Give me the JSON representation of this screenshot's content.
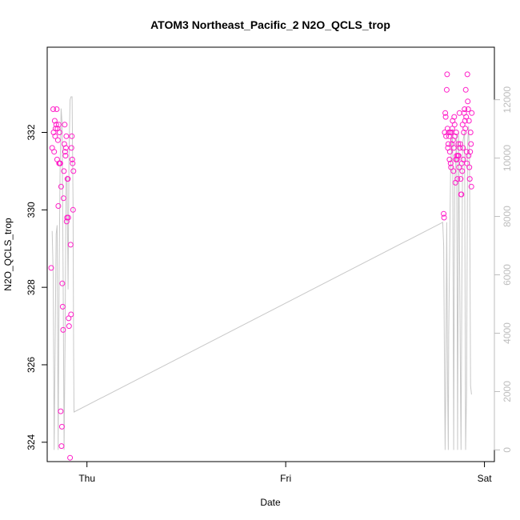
{
  "chart_data": {
    "type": "scatter",
    "title": "ATOM3 Northeast_Pacific_2 N2O_QCLS_trop",
    "xlabel": "Date",
    "ylabel": "N2O_QCLS_trop",
    "x_ticks": [
      "Thu",
      "Fri",
      "Sat"
    ],
    "x_range_days": [
      -0.2,
      2.05
    ],
    "ylim": [
      323.5,
      334.2
    ],
    "y_ticks": [
      324,
      326,
      328,
      330,
      332
    ],
    "y2lim": [
      -400,
      13800
    ],
    "y2_ticks": [
      0,
      2000,
      4000,
      6000,
      8000,
      10000,
      12000
    ],
    "point_color": "#ff1fc8",
    "line_color": "#c8c8c8",
    "series": [
      {
        "kind": "points",
        "points": [
          [
            -0.18,
            328.5
          ],
          [
            -0.175,
            331.6
          ],
          [
            -0.17,
            332.6
          ],
          [
            -0.168,
            332.0
          ],
          [
            -0.165,
            331.5
          ],
          [
            -0.162,
            332.3
          ],
          [
            -0.16,
            331.9
          ],
          [
            -0.158,
            332.1
          ],
          [
            -0.155,
            332.2
          ],
          [
            -0.152,
            332.6
          ],
          [
            -0.15,
            331.3
          ],
          [
            -0.148,
            332.1
          ],
          [
            -0.146,
            331.8
          ],
          [
            -0.144,
            330.1
          ],
          [
            -0.142,
            332.2
          ],
          [
            -0.14,
            331.2
          ],
          [
            -0.138,
            332.0
          ],
          [
            -0.136,
            331.2
          ],
          [
            -0.134,
            331.2
          ],
          [
            -0.132,
            324.8
          ],
          [
            -0.13,
            330.6
          ],
          [
            -0.128,
            323.9
          ],
          [
            -0.126,
            324.4
          ],
          [
            -0.124,
            328.1
          ],
          [
            -0.122,
            327.5
          ],
          [
            -0.12,
            326.9
          ],
          [
            -0.118,
            330.3
          ],
          [
            -0.116,
            331.0
          ],
          [
            -0.114,
            331.7
          ],
          [
            -0.112,
            332.2
          ],
          [
            -0.11,
            331.5
          ],
          [
            -0.108,
            331.4
          ],
          [
            -0.106,
            331.6
          ],
          [
            -0.104,
            331.9
          ],
          [
            -0.102,
            329.7
          ],
          [
            -0.1,
            329.8
          ],
          [
            -0.098,
            330.8
          ],
          [
            -0.096,
            330.8
          ],
          [
            -0.094,
            329.8
          ],
          [
            -0.092,
            327.2
          ],
          [
            -0.09,
            327.0
          ],
          [
            -0.085,
            323.6
          ],
          [
            -0.082,
            329.1
          ],
          [
            -0.08,
            327.3
          ],
          [
            -0.078,
            331.6
          ],
          [
            -0.076,
            331.9
          ],
          [
            -0.074,
            331.3
          ],
          [
            -0.072,
            331.2
          ],
          [
            -0.07,
            330.0
          ],
          [
            -0.068,
            331.0
          ],
          [
            1.795,
            329.9
          ],
          [
            1.797,
            329.8
          ],
          [
            1.8,
            332.0
          ],
          [
            1.803,
            332.5
          ],
          [
            1.805,
            332.4
          ],
          [
            1.807,
            331.9
          ],
          [
            1.81,
            333.1
          ],
          [
            1.812,
            333.5
          ],
          [
            1.814,
            332.1
          ],
          [
            1.816,
            331.6
          ],
          [
            1.818,
            331.7
          ],
          [
            1.82,
            332.0
          ],
          [
            1.822,
            331.9
          ],
          [
            1.824,
            331.3
          ],
          [
            1.826,
            331.5
          ],
          [
            1.828,
            332.0
          ],
          [
            1.83,
            331.2
          ],
          [
            1.832,
            331.1
          ],
          [
            1.834,
            332.0
          ],
          [
            1.836,
            331.7
          ],
          [
            1.838,
            332.1
          ],
          [
            1.84,
            332.3
          ],
          [
            1.842,
            331.8
          ],
          [
            1.844,
            331.0
          ],
          [
            1.846,
            331.6
          ],
          [
            1.848,
            332.4
          ],
          [
            1.85,
            332.2
          ],
          [
            1.852,
            331.9
          ],
          [
            1.854,
            330.7
          ],
          [
            1.856,
            331.3
          ],
          [
            1.858,
            332.0
          ],
          [
            1.86,
            331.4
          ],
          [
            1.862,
            331.3
          ],
          [
            1.864,
            330.8
          ],
          [
            1.866,
            331.4
          ],
          [
            1.868,
            331.7
          ],
          [
            1.87,
            331.4
          ],
          [
            1.872,
            331.1
          ],
          [
            1.874,
            332.5
          ],
          [
            1.876,
            331.6
          ],
          [
            1.878,
            331.7
          ],
          [
            1.88,
            330.8
          ],
          [
            1.882,
            330.4
          ],
          [
            1.884,
            330.4
          ],
          [
            1.886,
            331.2
          ],
          [
            1.888,
            331.0
          ],
          [
            1.89,
            332.2
          ],
          [
            1.892,
            331.6
          ],
          [
            1.894,
            331.3
          ],
          [
            1.896,
            332.0
          ],
          [
            1.898,
            332.5
          ],
          [
            1.9,
            332.6
          ],
          [
            1.902,
            332.3
          ],
          [
            1.904,
            332.1
          ],
          [
            1.906,
            333.1
          ],
          [
            1.908,
            332.4
          ],
          [
            1.91,
            331.5
          ],
          [
            1.912,
            331.2
          ],
          [
            1.914,
            333.5
          ],
          [
            1.916,
            332.8
          ],
          [
            1.918,
            332.6
          ],
          [
            1.92,
            331.4
          ],
          [
            1.922,
            332.3
          ],
          [
            1.924,
            331.1
          ],
          [
            1.926,
            330.8
          ],
          [
            1.928,
            331.5
          ],
          [
            1.93,
            332.0
          ],
          [
            1.932,
            331.7
          ],
          [
            1.934,
            330.6
          ],
          [
            1.936,
            332.5
          ]
        ]
      },
      {
        "kind": "line",
        "axis": "right",
        "points": [
          [
            -0.175,
            7500
          ],
          [
            -0.17,
            6000
          ],
          [
            -0.165,
            0
          ],
          [
            -0.16,
            3500
          ],
          [
            -0.155,
            7400
          ],
          [
            -0.15,
            7700
          ],
          [
            -0.145,
            0
          ],
          [
            -0.14,
            6000
          ],
          [
            -0.135,
            9600
          ],
          [
            -0.13,
            11700
          ],
          [
            -0.125,
            11200
          ],
          [
            -0.12,
            6000
          ],
          [
            -0.115,
            0
          ],
          [
            -0.11,
            4000
          ],
          [
            -0.105,
            9300
          ],
          [
            -0.1,
            9400
          ],
          [
            -0.095,
            5500
          ],
          [
            -0.09,
            10200
          ],
          [
            -0.085,
            12000
          ],
          [
            -0.08,
            12100
          ],
          [
            -0.075,
            12100
          ],
          [
            -0.07,
            8500
          ],
          [
            -0.067,
            3500
          ],
          [
            -0.065,
            1300
          ],
          [
            1.79,
            7800
          ],
          [
            1.795,
            7000
          ],
          [
            1.8,
            1700
          ],
          [
            1.802,
            0
          ],
          [
            1.805,
            1800
          ],
          [
            1.81,
            7800
          ],
          [
            1.815,
            1900
          ],
          [
            1.818,
            0
          ],
          [
            1.82,
            4000
          ],
          [
            1.83,
            9800
          ],
          [
            1.84,
            11000
          ],
          [
            1.845,
            0
          ],
          [
            1.85,
            9000
          ],
          [
            1.86,
            10800
          ],
          [
            1.865,
            0
          ],
          [
            1.87,
            10900
          ],
          [
            1.88,
            1500
          ],
          [
            1.882,
            0
          ],
          [
            1.89,
            10500
          ],
          [
            1.9,
            10900
          ],
          [
            1.905,
            0
          ],
          [
            1.91,
            2000
          ],
          [
            1.915,
            10500
          ],
          [
            1.92,
            11100
          ],
          [
            1.925,
            10000
          ],
          [
            1.93,
            2200
          ],
          [
            1.935,
            1900
          ]
        ]
      }
    ]
  }
}
